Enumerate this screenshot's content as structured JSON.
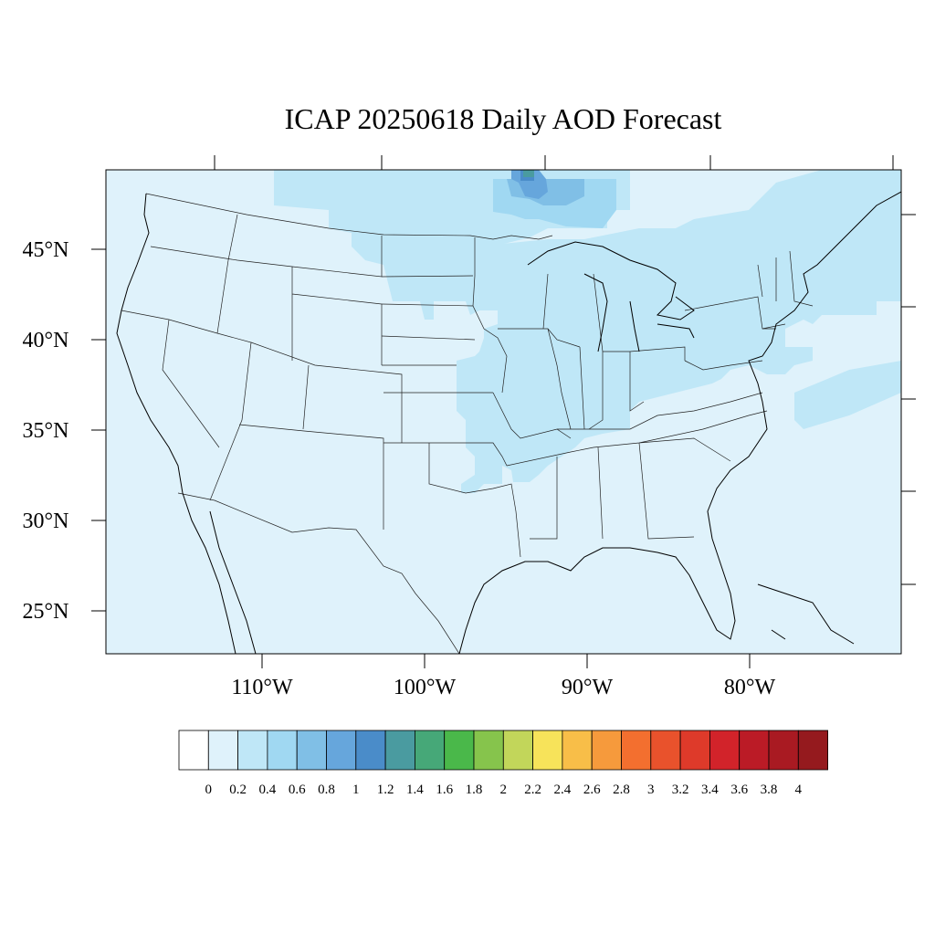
{
  "title": "ICAP 20250618 Daily AOD Forecast",
  "axes": {
    "lat_labels": [
      "45°N",
      "40°N",
      "35°N",
      "30°N",
      "25°N"
    ],
    "lon_labels": [
      "110°W",
      "100°W",
      "90°W",
      "80°W"
    ]
  },
  "colorbar": {
    "labels": [
      "0",
      "0.2",
      "0.4",
      "0.6",
      "0.8",
      "1",
      "1.2",
      "1.4",
      "1.6",
      "1.8",
      "2",
      "2.2",
      "2.4",
      "2.6",
      "2.8",
      "3",
      "3.2",
      "3.4",
      "3.6",
      "3.8",
      "4"
    ],
    "colors": [
      "#ffffff",
      "#dff2fb",
      "#bfe7f7",
      "#a0d8f2",
      "#80bfe6",
      "#66a6dc",
      "#4a8cc9",
      "#4a9ba0",
      "#46a878",
      "#4ab84a",
      "#86c44c",
      "#c2d65a",
      "#f7e35a",
      "#f8be48",
      "#f69a3c",
      "#f36f2f",
      "#e9522c",
      "#de3a2a",
      "#d2232a",
      "#bb1b26",
      "#a91a22",
      "#951a1e"
    ]
  },
  "map_colors": {
    "background": "#dff2fb",
    "aod_04": "#bfe7f7",
    "aod_06": "#a0d8f2",
    "aod_08": "#80bfe6",
    "aod_10": "#66a6dc",
    "aod_12": "#4a8cc9",
    "aod_14": "#4a9ba0"
  }
}
